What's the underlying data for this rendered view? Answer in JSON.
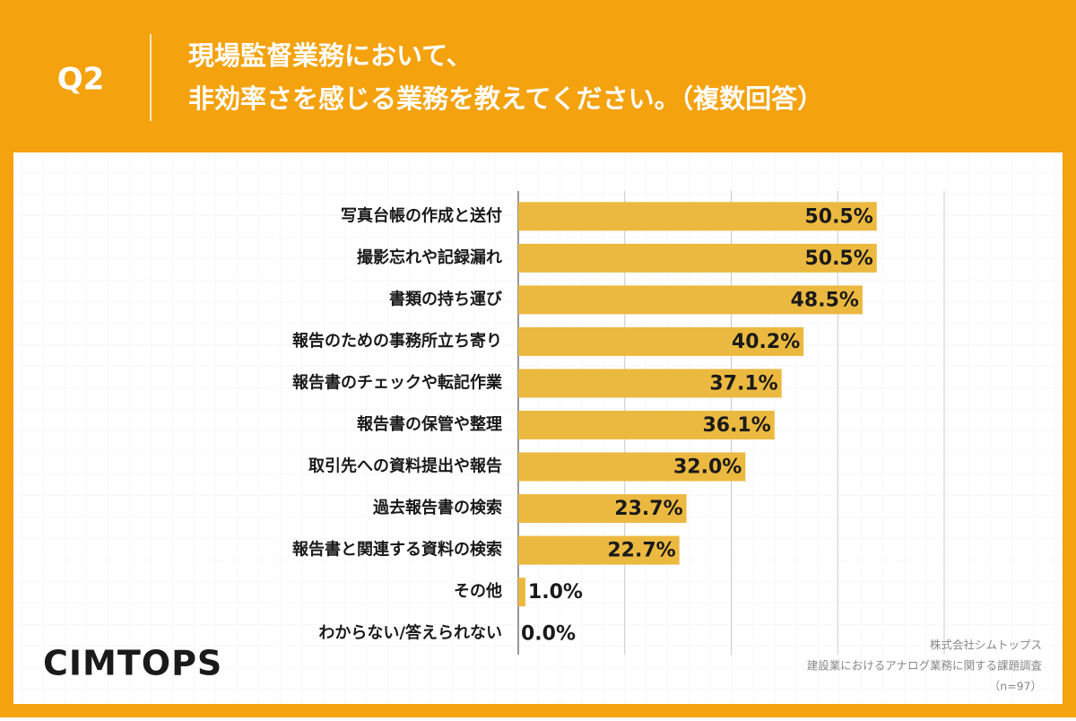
{
  "chart_data": {
    "type": "bar",
    "orientation": "horizontal",
    "label": "Q2",
    "title_lines": [
      "現場監督業務において、",
      "非効率さを感じる業務を教えてください。（複数回答）"
    ],
    "categories": [
      "写真台帳の作成と送付",
      "撮影忘れや記録漏れ",
      "書類の持ち運び",
      "報告のための事務所立ち寄り",
      "報告書のチェックや転記作業",
      "報告書の保管や整理",
      "取引先への資料提出や報告",
      "過去報告書の検索",
      "報告書と関連する資料の検索",
      "その他",
      "わからない/答えられない"
    ],
    "values": [
      50.5,
      50.5,
      48.5,
      40.2,
      37.1,
      36.1,
      32.0,
      23.7,
      22.7,
      1.0,
      0.0
    ],
    "value_labels": [
      "50.5%",
      "50.5%",
      "48.5%",
      "40.2%",
      "37.1%",
      "36.1%",
      "32.0%",
      "23.7%",
      "22.7%",
      "1.0%",
      "0.0%"
    ],
    "color": "#ecb940",
    "xlim": [
      0,
      60
    ],
    "xticks": [
      0,
      15,
      30,
      45,
      60
    ],
    "grid": true,
    "logo": "CIMTOPS",
    "source": [
      "株式会社シムトップス",
      "建設業におけるアナログ業務に関する課題調査",
      "（n=97）"
    ]
  }
}
